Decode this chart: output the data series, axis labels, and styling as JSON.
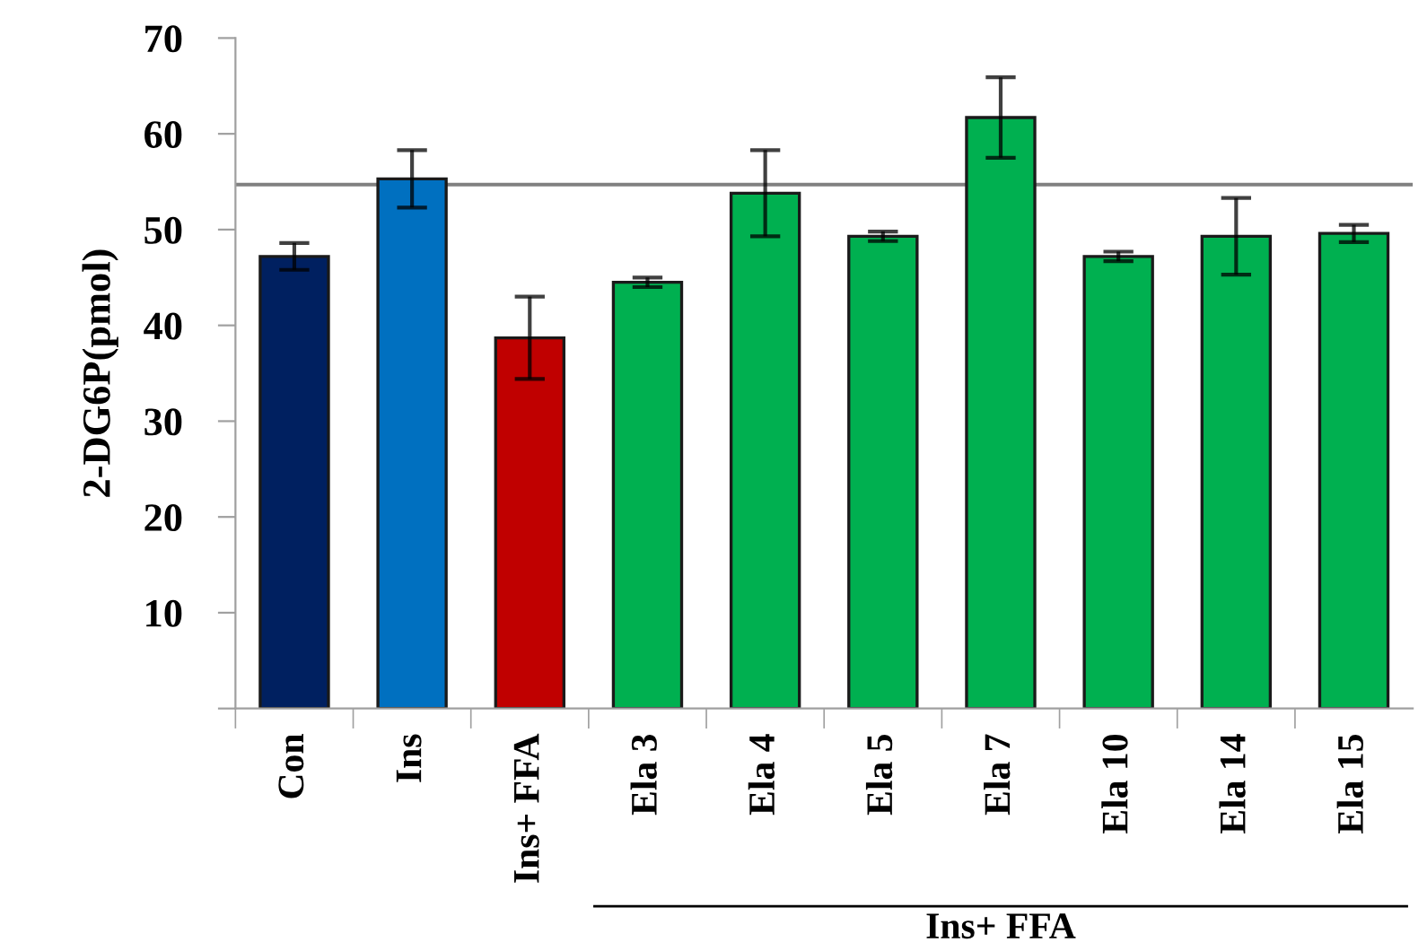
{
  "chart_data": {
    "type": "bar",
    "ylabel": "2-DG6P(pmol)",
    "categories": [
      "Con",
      "Ins",
      "Ins+ FFA",
      "Ela 3",
      "Ela 4",
      "Ela 5",
      "Ela 7",
      "Ela 10",
      "Ela 14",
      "Ela 15"
    ],
    "values": [
      47.2,
      55.3,
      38.7,
      44.5,
      53.8,
      49.3,
      61.7,
      47.2,
      49.3,
      49.6
    ],
    "errors": [
      1.4,
      3.0,
      4.3,
      0.5,
      4.5,
      0.5,
      4.2,
      0.5,
      4.0,
      0.9
    ],
    "colors": [
      "#002060",
      "#0070c0",
      "#c00000",
      "#00b050",
      "#00b050",
      "#00b050",
      "#00b050",
      "#00b050",
      "#00b050",
      "#00b050"
    ],
    "ylim": [
      0,
      70
    ],
    "yticks": [
      {
        "value": 0,
        "label": null
      },
      10,
      20,
      30,
      40,
      50,
      60,
      70
    ],
    "ref_lines": [
      {
        "axis": "y",
        "value": 54.7,
        "color": "#808080"
      }
    ],
    "annotations": [
      "Ins+ FFA"
    ],
    "grid": false,
    "legend": false
  }
}
